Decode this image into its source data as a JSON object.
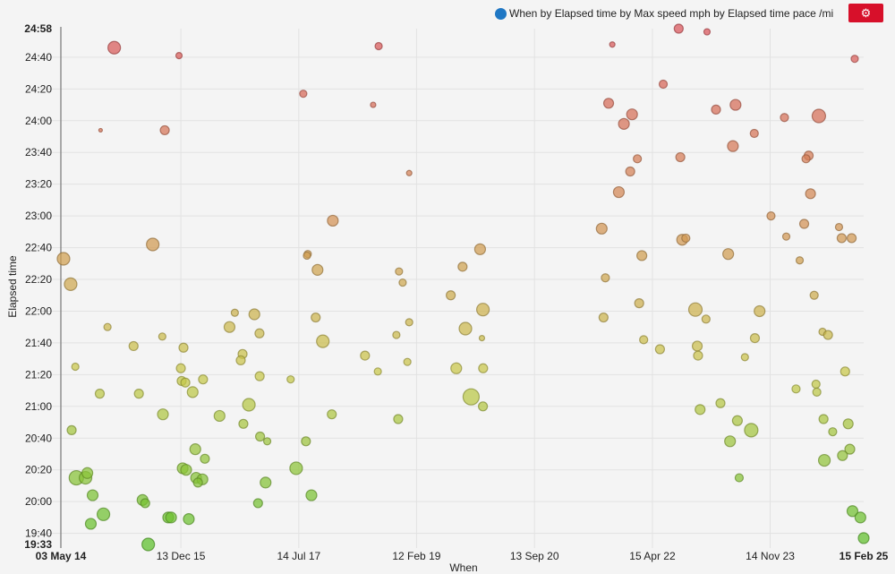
{
  "legend": {
    "label": "When by Elapsed time by Max speed mph by Elapsed time pace /mi",
    "color": "#1f77c4"
  },
  "settings_button": {
    "icon": "gear-icon",
    "color": "#d7102a"
  },
  "chart_data": {
    "type": "scatter",
    "title": "",
    "xlabel": "When",
    "ylabel": "Elapsed time",
    "x_axis": "date",
    "xlim": [
      "2014-05-03",
      "2025-02-15"
    ],
    "ylim": [
      "19:33",
      "24:58"
    ],
    "x_ticks": [
      "03 May 14",
      "13 Dec 15",
      "14 Jul 17",
      "12 Feb 19",
      "13 Sep 20",
      "15 Apr 22",
      "14 Nov 23",
      "15 Feb 25"
    ],
    "y_ticks": [
      "19:33",
      "19:40",
      "20:00",
      "20:20",
      "20:40",
      "21:00",
      "21:20",
      "21:40",
      "22:00",
      "22:20",
      "22:40",
      "23:00",
      "23:20",
      "23:40",
      "24:00",
      "24:20",
      "24:40",
      "24:58"
    ],
    "grid": true,
    "legend_position": "top-right",
    "encoding": {
      "x": "When",
      "y": "Elapsed time",
      "size": "Max speed mph",
      "color": "Elapsed time pace /mi"
    },
    "color_scale": [
      "#5cbf2a",
      "#c9c84a",
      "#d38a55",
      "#d9545a"
    ],
    "columns": [
      "when",
      "elapsed_time",
      "max_speed_mph"
    ],
    "points": [
      [
        "2015-01-20",
        "24:46",
        13
      ],
      [
        "2015-12-04",
        "24:41",
        9.5
      ],
      [
        "2014-11-14",
        "23:54",
        8
      ],
      [
        "2015-09-25",
        "23:54",
        11
      ],
      [
        "2017-08-05",
        "24:17",
        10
      ],
      [
        "2015-07-28",
        "22:42",
        13
      ],
      [
        "2014-05-16",
        "22:33",
        13
      ],
      [
        "2014-06-20",
        "22:17",
        13
      ],
      [
        "2017-08-27",
        "22:36",
        10
      ],
      [
        "2014-12-18",
        "21:50",
        10
      ],
      [
        "2015-09-13",
        "21:44",
        10
      ],
      [
        "2015-04-25",
        "21:38",
        11
      ],
      [
        "2015-12-26",
        "21:37",
        11
      ],
      [
        "2014-07-13",
        "21:25",
        10
      ],
      [
        "2015-12-13",
        "21:24",
        11
      ],
      [
        "2015-12-17",
        "21:16",
        11
      ],
      [
        "2016-01-04",
        "21:15",
        11
      ],
      [
        "2016-03-31",
        "21:17",
        11
      ],
      [
        "2014-11-10",
        "21:08",
        11
      ],
      [
        "2015-05-21",
        "21:08",
        11
      ],
      [
        "2016-02-09",
        "21:09",
        12
      ],
      [
        "2015-09-16",
        "20:55",
        12
      ],
      [
        "2016-06-20",
        "20:54",
        12
      ],
      [
        "2016-09-03",
        "21:59",
        10
      ],
      [
        "2016-12-08",
        "21:58",
        12
      ],
      [
        "2016-08-08",
        "21:50",
        12
      ],
      [
        "2017-01-02",
        "21:46",
        11
      ],
      [
        "2016-10-11",
        "21:33",
        11
      ],
      [
        "2016-10-02",
        "21:29",
        11
      ],
      [
        "2017-01-03",
        "21:19",
        11
      ],
      [
        "2017-06-04",
        "21:17",
        10
      ],
      [
        "2016-11-11",
        "21:01",
        13
      ],
      [
        "2016-10-15",
        "20:49",
        11
      ],
      [
        "2017-01-05",
        "20:41",
        11
      ],
      [
        "2017-02-09",
        "20:38",
        10
      ],
      [
        "2017-08-18",
        "20:38",
        11
      ],
      [
        "2014-06-25",
        "20:45",
        11
      ],
      [
        "2016-02-22",
        "20:33",
        12
      ],
      [
        "2016-04-09",
        "20:27",
        11
      ],
      [
        "2015-12-22",
        "20:21",
        12
      ],
      [
        "2016-01-08",
        "20:20",
        12
      ],
      [
        "2016-02-26",
        "20:15",
        12
      ],
      [
        "2016-03-28",
        "20:14",
        12
      ],
      [
        "2016-03-06",
        "20:12",
        11
      ],
      [
        "2014-07-18",
        "20:15",
        14
      ],
      [
        "2014-09-01",
        "20:15",
        13
      ],
      [
        "2014-09-10",
        "20:18",
        12
      ],
      [
        "2014-10-06",
        "20:04",
        12
      ],
      [
        "2015-06-08",
        "20:01",
        12
      ],
      [
        "2015-06-21",
        "19:59",
        11
      ],
      [
        "2014-11-28",
        "19:52",
        13
      ],
      [
        "2014-09-27",
        "19:46",
        12
      ],
      [
        "2015-10-12",
        "19:50",
        12
      ],
      [
        "2015-10-26",
        "19:50",
        12
      ],
      [
        "2016-01-21",
        "19:49",
        12
      ],
      [
        "2015-07-06",
        "19:33",
        13
      ],
      [
        "2017-07-01",
        "20:21",
        13
      ],
      [
        "2017-02-01",
        "20:12",
        12
      ],
      [
        "2016-12-26",
        "19:59",
        11
      ],
      [
        "2017-09-14",
        "20:04",
        12
      ],
      [
        "2017-10-05",
        "21:56",
        11
      ],
      [
        "2017-11-09",
        "21:41",
        13
      ],
      [
        "2017-12-23",
        "20:55",
        11
      ],
      [
        "2018-08-10",
        "24:47",
        10
      ],
      [
        "2018-07-14",
        "24:10",
        9
      ],
      [
        "2019-01-07",
        "23:27",
        9
      ],
      [
        "2017-12-28",
        "22:57",
        12
      ],
      [
        "2017-08-23",
        "22:35",
        10
      ],
      [
        "2017-10-14",
        "22:26",
        12
      ],
      [
        "2018-11-18",
        "22:25",
        10
      ],
      [
        "2018-12-06",
        "22:18",
        10
      ],
      [
        "2019-12-21",
        "22:39",
        12
      ],
      [
        "2019-09-26",
        "22:28",
        11
      ],
      [
        "2019-07-30",
        "22:10",
        11
      ],
      [
        "2020-01-04",
        "22:01",
        13
      ],
      [
        "2019-01-07",
        "21:53",
        10
      ],
      [
        "2018-11-05",
        "21:45",
        10
      ],
      [
        "2019-10-10",
        "21:49",
        13
      ],
      [
        "2019-12-30",
        "21:43",
        9
      ],
      [
        "2018-06-04",
        "21:32",
        11
      ],
      [
        "2018-12-29",
        "21:28",
        10
      ],
      [
        "2018-08-06",
        "21:22",
        10
      ],
      [
        "2019-08-26",
        "21:24",
        12
      ],
      [
        "2020-01-05",
        "21:24",
        11
      ],
      [
        "2019-11-07",
        "21:06",
        15
      ],
      [
        "2020-01-04",
        "21:00",
        11
      ],
      [
        "2018-11-14",
        "20:52",
        11
      ],
      [
        "2022-08-22",
        "24:58",
        11
      ],
      [
        "2023-01-08",
        "24:56",
        9.5
      ],
      [
        "2021-09-30",
        "24:48",
        9
      ],
      [
        "2025-01-02",
        "24:39",
        10
      ],
      [
        "2022-06-07",
        "24:23",
        10.5
      ],
      [
        "2021-09-12",
        "24:11",
        11.5
      ],
      [
        "2022-01-05",
        "24:04",
        12
      ],
      [
        "2023-02-21",
        "24:07",
        11
      ],
      [
        "2023-05-28",
        "24:10",
        12
      ],
      [
        "2024-01-23",
        "24:02",
        10.5
      ],
      [
        "2024-07-10",
        "24:03",
        13.5
      ],
      [
        "2021-11-26",
        "23:58",
        12
      ],
      [
        "2023-08-28",
        "23:52",
        10.5
      ],
      [
        "2023-05-15",
        "23:44",
        12
      ],
      [
        "2022-01-31",
        "23:36",
        10.5
      ],
      [
        "2022-08-30",
        "23:37",
        11
      ],
      [
        "2021-12-27",
        "23:28",
        11
      ],
      [
        "2024-05-21",
        "23:38",
        11
      ],
      [
        "2024-05-08",
        "23:36",
        10.5
      ],
      [
        "2021-11-01",
        "23:15",
        12
      ],
      [
        "2024-05-30",
        "23:14",
        11.5
      ],
      [
        "2023-11-18",
        "23:00",
        10.5
      ],
      [
        "2021-08-09",
        "22:52",
        12
      ],
      [
        "2024-04-29",
        "22:55",
        11
      ],
      [
        "2024-10-17",
        "22:53",
        10
      ],
      [
        "2022-09-08",
        "22:45",
        12
      ],
      [
        "2022-09-26",
        "22:46",
        10.5
      ],
      [
        "2024-02-01",
        "22:47",
        10
      ],
      [
        "2024-10-30",
        "22:46",
        11
      ],
      [
        "2024-12-18",
        "22:46",
        11
      ],
      [
        "2022-02-22",
        "22:35",
        11.5
      ],
      [
        "2023-04-22",
        "22:36",
        12
      ],
      [
        "2024-04-07",
        "22:32",
        10
      ],
      [
        "2021-08-27",
        "22:21",
        10.5
      ],
      [
        "2024-06-17",
        "22:10",
        10.5
      ],
      [
        "2022-02-09",
        "22:05",
        11
      ],
      [
        "2021-08-18",
        "21:56",
        11
      ],
      [
        "2022-11-12",
        "22:01",
        13.5
      ],
      [
        "2023-01-03",
        "21:55",
        10.5
      ],
      [
        "2023-09-23",
        "22:00",
        12
      ],
      [
        "2022-03-03",
        "21:42",
        10.5
      ],
      [
        "2022-05-22",
        "21:36",
        11
      ],
      [
        "2022-11-21",
        "21:38",
        11.5
      ],
      [
        "2022-11-25",
        "21:32",
        11
      ],
      [
        "2023-07-13",
        "21:31",
        10
      ],
      [
        "2023-08-31",
        "21:43",
        11
      ],
      [
        "2024-07-28",
        "21:47",
        10
      ],
      [
        "2024-08-24",
        "21:45",
        11
      ],
      [
        "2024-11-16",
        "21:22",
        11
      ],
      [
        "2024-03-20",
        "21:11",
        10.5
      ],
      [
        "2024-06-26",
        "21:14",
        10.5
      ],
      [
        "2024-06-30",
        "21:09",
        10.5
      ],
      [
        "2023-03-15",
        "21:02",
        11
      ],
      [
        "2022-12-05",
        "20:58",
        11.5
      ],
      [
        "2023-06-06",
        "20:51",
        11.5
      ],
      [
        "2024-08-02",
        "20:52",
        11
      ],
      [
        "2024-12-01",
        "20:49",
        11.5
      ],
      [
        "2023-08-13",
        "20:45",
        13.5
      ],
      [
        "2024-09-16",
        "20:44",
        10.5
      ],
      [
        "2023-05-01",
        "20:38",
        12
      ],
      [
        "2024-12-09",
        "20:33",
        11.5
      ],
      [
        "2024-11-03",
        "20:29",
        11.5
      ],
      [
        "2024-08-06",
        "20:26",
        12.5
      ],
      [
        "2023-06-15",
        "20:15",
        10.5
      ],
      [
        "2024-12-22",
        "19:54",
        12
      ],
      [
        "2025-01-30",
        "19:50",
        12
      ],
      [
        "2025-02-15",
        "19:37",
        12
      ]
    ]
  }
}
